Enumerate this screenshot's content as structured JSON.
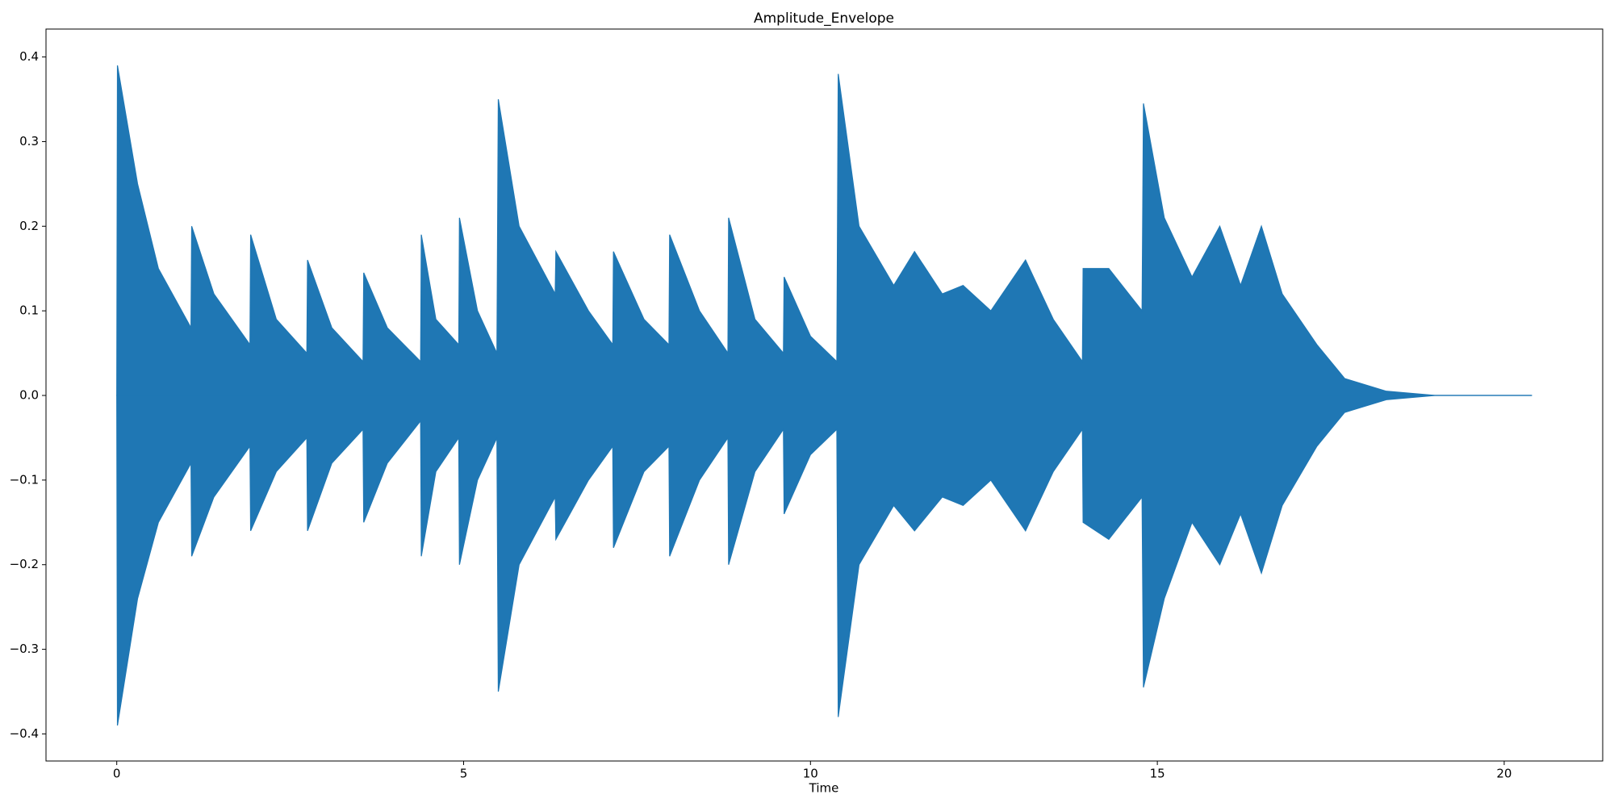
{
  "chart_data": {
    "type": "area",
    "title": "Amplitude_Envelope",
    "x_label": "Time",
    "x": [
      0,
      0.01,
      0.3,
      0.6,
      1.07,
      1.08,
      1.4,
      1.92,
      1.93,
      2.3,
      2.74,
      2.75,
      3.1,
      3.55,
      3.56,
      3.9,
      4.38,
      4.39,
      4.6,
      4.93,
      4.94,
      5.2,
      5.48,
      5.5,
      5.8,
      6.32,
      6.33,
      6.8,
      7.15,
      7.16,
      7.6,
      7.96,
      7.97,
      8.4,
      8.81,
      8.82,
      9.2,
      9.61,
      9.62,
      10.0,
      10.38,
      10.4,
      10.7,
      11.2,
      11.5,
      11.9,
      12.2,
      12.6,
      13.1,
      13.5,
      13.92,
      13.93,
      14.3,
      14.78,
      14.8,
      15.1,
      15.5,
      15.9,
      16.2,
      16.5,
      16.8,
      17.3,
      17.7,
      18.3,
      19.0,
      20.4
    ],
    "series": [
      {
        "color": "#1f77b4",
        "values": [
          0,
          0.39,
          0.25,
          0.15,
          0.08,
          0.2,
          0.12,
          0.06,
          0.19,
          0.09,
          0.05,
          0.16,
          0.08,
          0.04,
          0.145,
          0.08,
          0.04,
          0.19,
          0.09,
          0.06,
          0.21,
          0.1,
          0.05,
          0.35,
          0.2,
          0.12,
          0.17,
          0.1,
          0.06,
          0.17,
          0.09,
          0.06,
          0.19,
          0.1,
          0.05,
          0.21,
          0.09,
          0.05,
          0.14,
          0.07,
          0.04,
          0.38,
          0.2,
          0.13,
          0.17,
          0.12,
          0.13,
          0.1,
          0.16,
          0.09,
          0.04,
          0.15,
          0.15,
          0.1,
          0.345,
          0.21,
          0.14,
          0.2,
          0.13,
          0.2,
          0.12,
          0.06,
          0.02,
          0.005,
          0,
          0
        ]
      },
      {
        "color": "#1f77b4",
        "values": [
          0,
          -0.39,
          -0.24,
          -0.15,
          -0.08,
          -0.19,
          -0.12,
          -0.06,
          -0.16,
          -0.09,
          -0.05,
          -0.16,
          -0.08,
          -0.04,
          -0.15,
          -0.08,
          -0.03,
          -0.19,
          -0.09,
          -0.05,
          -0.2,
          -0.1,
          -0.05,
          -0.35,
          -0.2,
          -0.12,
          -0.17,
          -0.1,
          -0.06,
          -0.18,
          -0.09,
          -0.06,
          -0.19,
          -0.1,
          -0.05,
          -0.2,
          -0.09,
          -0.04,
          -0.14,
          -0.07,
          -0.04,
          -0.38,
          -0.2,
          -0.13,
          -0.16,
          -0.12,
          -0.13,
          -0.1,
          -0.16,
          -0.09,
          -0.04,
          -0.15,
          -0.17,
          -0.12,
          -0.345,
          -0.24,
          -0.15,
          -0.2,
          -0.14,
          -0.21,
          -0.13,
          -0.06,
          -0.02,
          -0.005,
          0,
          0
        ]
      }
    ],
    "xlim": [
      -1.02,
      21.42
    ],
    "xticks": [
      0,
      5,
      10,
      15,
      20
    ],
    "ylim": [
      -0.432,
      0.433
    ],
    "yticks": [
      {
        "value": -0.4,
        "label": "−0.4"
      },
      {
        "value": -0.3,
        "label": "−0.3"
      },
      {
        "value": -0.2,
        "label": "−0.2"
      },
      {
        "value": -0.1,
        "label": "−0.1"
      },
      {
        "value": 0,
        "label": "0.0"
      },
      {
        "value": 0.1,
        "label": "0.1"
      },
      {
        "value": 0.2,
        "label": "0.2"
      },
      {
        "value": 0.3,
        "label": "0.3"
      },
      {
        "value": 0.4,
        "label": "0.4"
      }
    ],
    "grid": false
  }
}
